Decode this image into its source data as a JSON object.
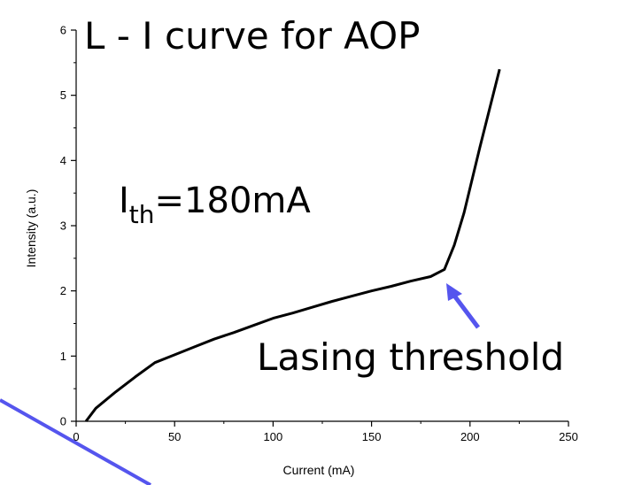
{
  "chart_data": {
    "type": "line",
    "title": "L - I curve for AOP",
    "xlabel": "Current (mA)",
    "ylabel": "Intensity (a.u.)",
    "xlim": [
      0,
      250
    ],
    "ylim": [
      0,
      6
    ],
    "xticks": [
      0,
      50,
      100,
      150,
      200,
      250
    ],
    "yticks": [
      0,
      1,
      2,
      3,
      4,
      5,
      6
    ],
    "x_minor_ticks": [
      25,
      75,
      125,
      175,
      225
    ],
    "y_minor_ticks": [
      0.5,
      1.5,
      2.5,
      3.5,
      4.5,
      5.5
    ],
    "grid": false,
    "series": [
      {
        "color": "#000000",
        "x": [
          5,
          10,
          20,
          30,
          40,
          50,
          60,
          70,
          80,
          90,
          100,
          110,
          120,
          130,
          140,
          150,
          160,
          170,
          180,
          187,
          192,
          197,
          205,
          215
        ],
        "y": [
          0,
          0.2,
          0.45,
          0.68,
          0.9,
          1.02,
          1.14,
          1.26,
          1.36,
          1.47,
          1.58,
          1.66,
          1.75,
          1.84,
          1.92,
          2.0,
          2.07,
          2.15,
          2.22,
          2.33,
          2.7,
          3.2,
          4.2,
          5.4
        ]
      }
    ],
    "annotations": {
      "ith_main": "I",
      "ith_sub": "th",
      "ith_value": "=180mA",
      "threshold_label": "Lasing threshold",
      "threshold_point": [
        187,
        2.33
      ],
      "arrow_color": "#5555ee"
    }
  }
}
